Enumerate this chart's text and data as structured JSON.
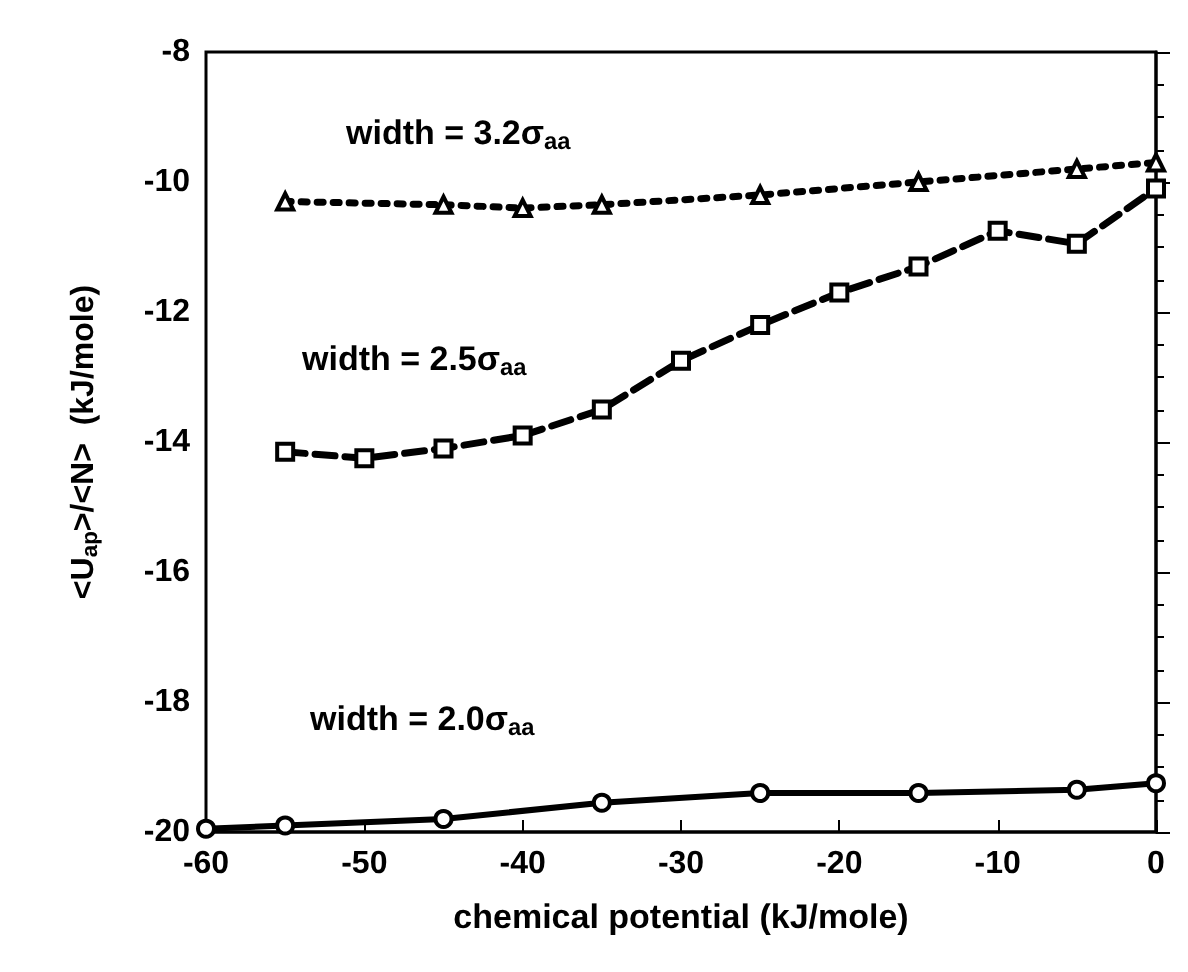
{
  "chart_data": {
    "type": "line",
    "xlabel": "chemical potential (kJ/mole)",
    "ylabel": "<U$_{ap}$>/<N>  (kJ/mole)",
    "xlim": [
      -60,
      0
    ],
    "xticks": [
      -60,
      -50,
      -40,
      -30,
      -20,
      -10,
      0
    ],
    "ylim": [
      -20,
      -8
    ],
    "yticks": [
      -20,
      -18,
      -16,
      -14,
      -12,
      -10,
      -8
    ],
    "grid": false,
    "series": [
      {
        "color": "#000000",
        "marker": "triangle",
        "line_style": "dotted",
        "x": [
          -55,
          -45,
          -40,
          -35,
          -25,
          -15,
          -5,
          0
        ],
        "values": [
          -10.3,
          -10.35,
          -10.4,
          -10.35,
          -10.2,
          -10.0,
          -9.8,
          -9.7
        ]
      },
      {
        "color": "#000000",
        "marker": "square",
        "line_style": "dashed",
        "x": [
          -55,
          -50,
          -45,
          -40,
          -35,
          -30,
          -25,
          -20,
          -15,
          -10,
          -5,
          0
        ],
        "values": [
          -14.15,
          -14.25,
          -14.1,
          -13.9,
          -13.5,
          -12.75,
          -12.2,
          -11.7,
          -11.3,
          -10.75,
          -10.95,
          -10.1
        ]
      },
      {
        "color": "#000000",
        "marker": "circle",
        "line_style": "solid",
        "x": [
          -60,
          -55,
          -45,
          -35,
          -25,
          -15,
          -5,
          0
        ],
        "values": [
          -19.95,
          -19.9,
          -19.8,
          -19.55,
          -19.4,
          -19.4,
          -19.35,
          -19.25
        ]
      }
    ],
    "annotations": [
      "width = 3.2σ$_{aa}$",
      "width = 2.5σ$_{aa}$",
      "width = 2.0σ$_{aa}$"
    ]
  }
}
